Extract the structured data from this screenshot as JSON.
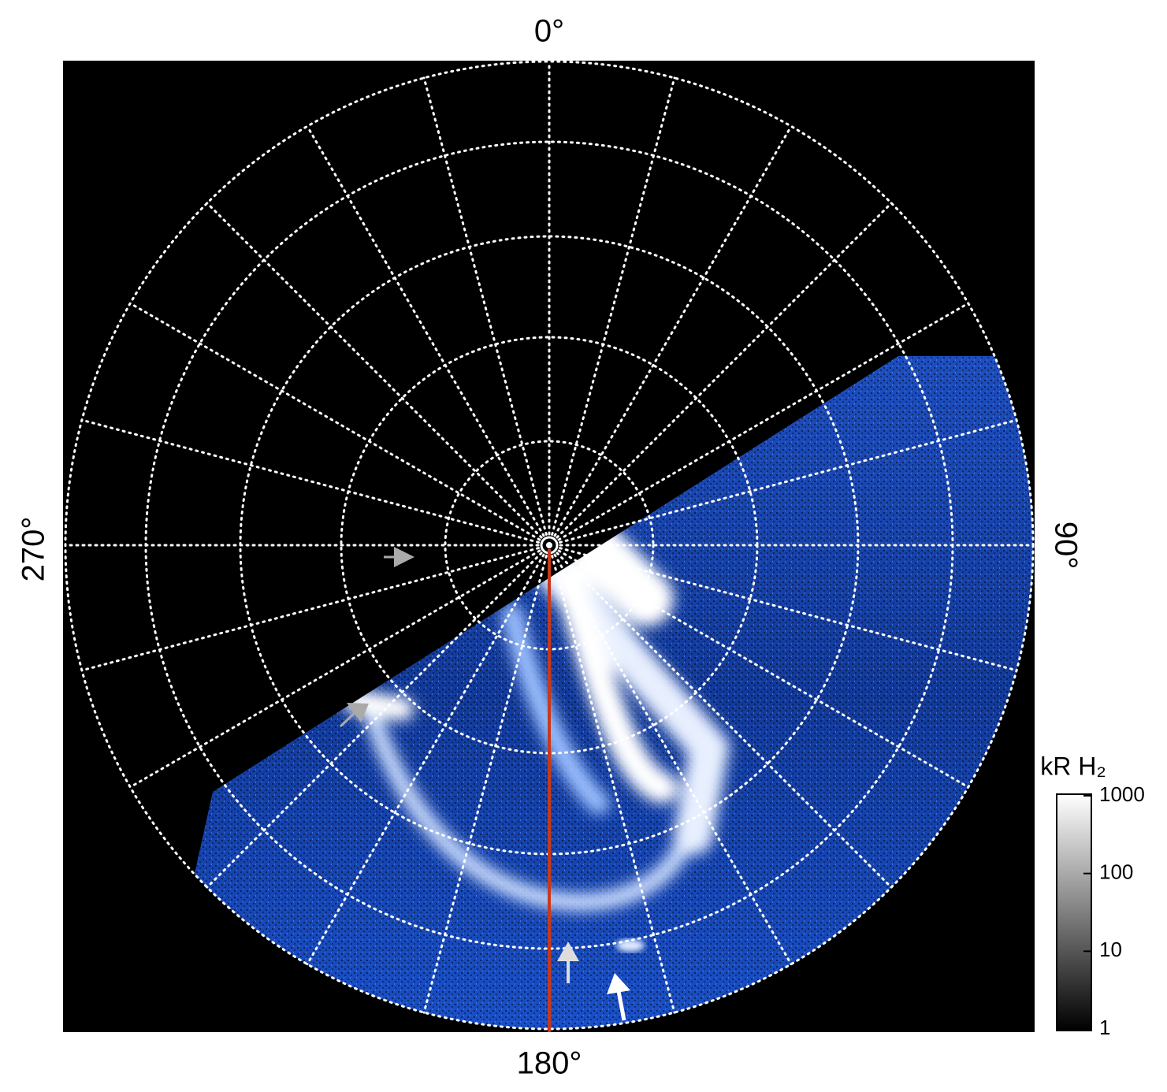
{
  "chart_data": {
    "type": "polar-image",
    "longitude_labels": {
      "top": "0°",
      "right": "90°",
      "bottom": "180°",
      "left": "270°"
    },
    "colorbar": {
      "label": "kR H₂",
      "scale": "log",
      "lim": [
        1,
        1000
      ],
      "ticks": [
        1,
        10,
        100,
        1000
      ]
    }
  }
}
